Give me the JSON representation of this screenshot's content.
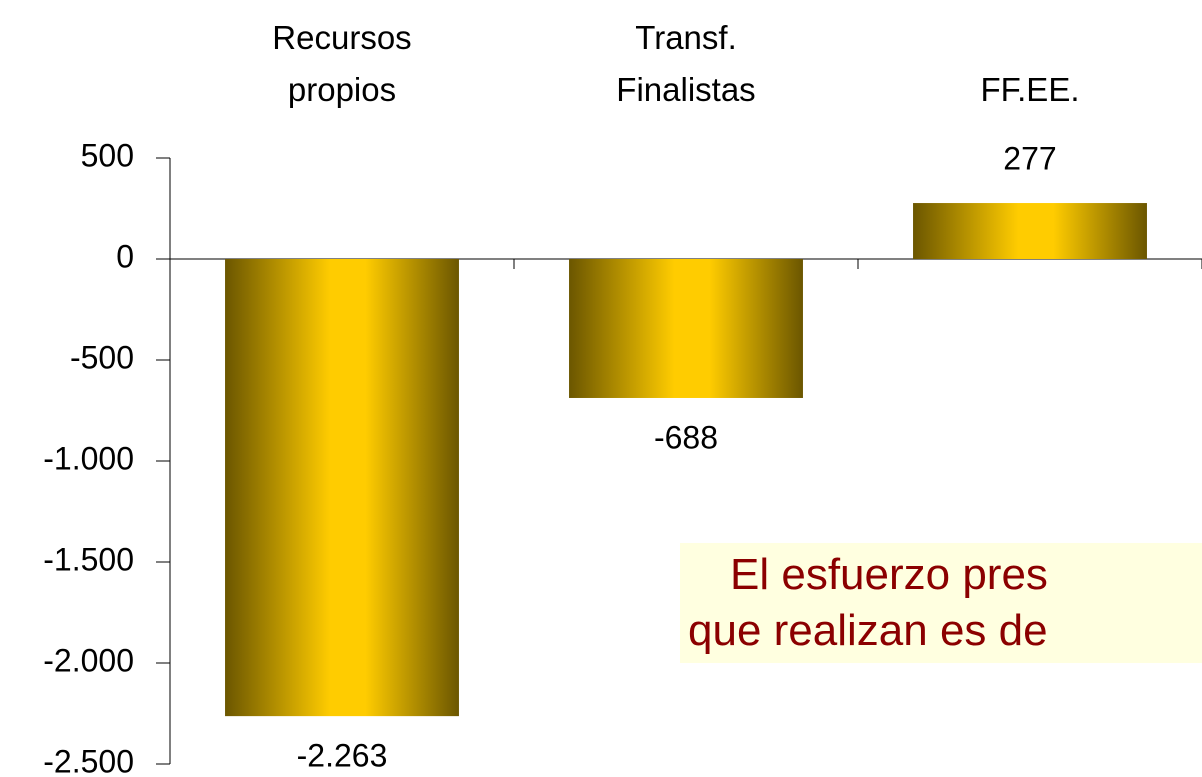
{
  "chart_data": {
    "type": "bar",
    "categories": [
      "Recursos propios",
      "Transf. Finalistas",
      "FF.EE."
    ],
    "values": [
      -2263,
      -688,
      277
    ],
    "value_labels": [
      "-2.263",
      "-688",
      "277"
    ],
    "color": "#ffcc00",
    "ylim": [
      -2500,
      500
    ],
    "yticks": [
      {
        "value": -2500,
        "label": "-2.500"
      },
      {
        "value": -2000,
        "label": "-2.000"
      },
      {
        "value": -1500,
        "label": "-1.500"
      },
      {
        "value": -1000,
        "label": "-1.000"
      },
      -500,
      0,
      500
    ],
    "grid": false,
    "annotation": [
      "El esfuerzo pres",
      "que realizan es de"
    ]
  }
}
